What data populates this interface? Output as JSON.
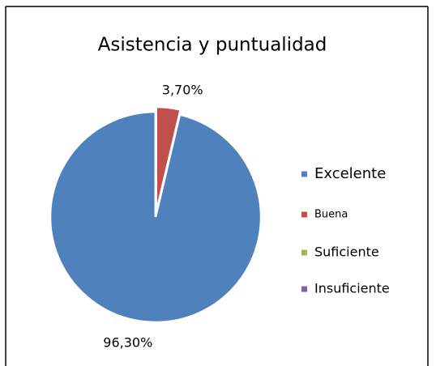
{
  "chart_data": {
    "type": "pie",
    "title": "Asistencia y puntualidad",
    "categories": [
      "Excelente",
      "Buena",
      "Suficiente",
      "Insuficiente"
    ],
    "values": [
      96.3,
      3.7,
      0,
      0
    ],
    "value_labels": [
      "96,30%",
      "3,70%",
      null,
      null
    ],
    "colors": [
      "#4f81bd",
      "#c0504d",
      "#9bbb59",
      "#8064a2"
    ],
    "legend": "right"
  }
}
